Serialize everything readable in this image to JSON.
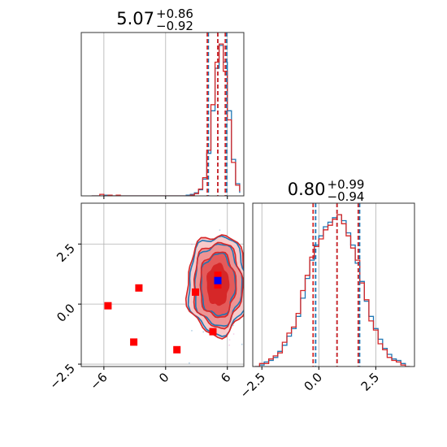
{
  "chart_data": {
    "type": "scatter",
    "layout": "corner",
    "params": [
      {
        "median": "5.07",
        "plus": "+0.86",
        "minus": "−0.92"
      },
      {
        "median": "0.80",
        "plus": "+0.99",
        "minus": "−0.94"
      }
    ],
    "axes": {
      "x1": {
        "lim": [
          -8.2,
          7.6
        ],
        "ticks": [
          -6,
          0,
          6
        ],
        "tick_labels": [
          "−6",
          "0",
          "6"
        ]
      },
      "x2": {
        "lim": [
          -2.9,
          4.2
        ],
        "ticks": [
          -2.5,
          0,
          2.5
        ],
        "tick_labels": [
          "−2.5",
          "0.0",
          "2.5"
        ]
      },
      "y2": {
        "lim": [
          -2.6,
          4.2
        ],
        "ticks": [
          -2.5,
          0,
          2.5
        ],
        "tick_labels": [
          "−2.5",
          "0.0",
          "2.5"
        ]
      }
    },
    "grid": true,
    "series_colors": {
      "blue": "#1f77b4",
      "red": "#d62728"
    },
    "quantile_lines": {
      "x1": {
        "blue": [
          4.15,
          5.07,
          5.93
        ],
        "red": [
          4.05,
          5.07,
          5.8
        ]
      },
      "x2": {
        "blue": [
          -0.14,
          0.8,
          1.79
        ],
        "red": [
          -0.25,
          0.8,
          1.73
        ]
      }
    },
    "hist_x1": {
      "bins": [
        -7.2,
        -6.8,
        -6.4,
        -6.0,
        -5.6,
        -5.2,
        -4.8,
        -4.4,
        -4.0,
        -3.6,
        -3.2,
        -2.8,
        -2.4,
        -2.0,
        -1.6,
        -1.2,
        -0.8,
        -0.4,
        0.0,
        0.4,
        0.8,
        1.2,
        1.6,
        2.0,
        2.4,
        2.8,
        3.2,
        3.6,
        4.0,
        4.4,
        4.8,
        5.2,
        5.6,
        6.0,
        6.4,
        6.8,
        7.2
      ],
      "blue": [
        0.0,
        0.0,
        0.0,
        0.005,
        0.0,
        0.0,
        0.0,
        0.0,
        0.0,
        0.0,
        0.0,
        0.0,
        0.0,
        0.0,
        0.0,
        0.0,
        0.0,
        0.0,
        0.0,
        0.0,
        0.0,
        0.0,
        0.0,
        0.005,
        0.01,
        0.02,
        0.04,
        0.11,
        0.28,
        0.56,
        0.84,
        0.99,
        0.88,
        0.56,
        0.24,
        0.08,
        0.02
      ],
      "red": [
        0.0,
        0.0,
        0.01,
        0.0,
        0.005,
        0.0,
        0.005,
        0.0,
        0.0,
        0.0,
        0.0,
        0.0,
        0.0,
        0.0,
        0.0,
        0.0,
        0.0,
        0.0,
        0.0,
        0.0,
        0.0,
        0.0,
        0.0,
        0.0,
        0.005,
        0.015,
        0.045,
        0.12,
        0.3,
        0.6,
        0.88,
        1.0,
        0.82,
        0.5,
        0.22,
        0.07,
        0.03
      ]
    },
    "hist_x2": {
      "bins": [
        -2.8,
        -2.6,
        -2.4,
        -2.2,
        -2.0,
        -1.8,
        -1.6,
        -1.4,
        -1.2,
        -1.0,
        -0.8,
        -0.6,
        -0.4,
        -0.2,
        0.0,
        0.2,
        0.4,
        0.6,
        0.8,
        1.0,
        1.2,
        1.4,
        1.6,
        1.8,
        2.0,
        2.2,
        2.4,
        2.6,
        2.8,
        3.0,
        3.2,
        3.4,
        3.6,
        3.8,
        4.0
      ],
      "blue": [
        0.0,
        0.01,
        0.03,
        0.04,
        0.06,
        0.1,
        0.14,
        0.2,
        0.25,
        0.33,
        0.45,
        0.58,
        0.7,
        0.8,
        0.86,
        0.92,
        0.95,
        0.98,
        1.0,
        0.96,
        0.88,
        0.8,
        0.68,
        0.56,
        0.43,
        0.33,
        0.25,
        0.18,
        0.12,
        0.08,
        0.05,
        0.04,
        0.02,
        0.0
      ],
      "red": [
        0.0,
        0.02,
        0.02,
        0.05,
        0.07,
        0.09,
        0.16,
        0.22,
        0.26,
        0.35,
        0.5,
        0.6,
        0.72,
        0.79,
        0.84,
        0.9,
        0.93,
        0.97,
        1.0,
        0.94,
        0.86,
        0.78,
        0.7,
        0.55,
        0.44,
        0.3,
        0.24,
        0.15,
        0.11,
        0.06,
        0.04,
        0.03,
        0.01,
        0.0
      ]
    },
    "scatter_points": [
      {
        "x": -5.6,
        "y": -0.07,
        "color": "#ff0000"
      },
      {
        "x": -2.6,
        "y": 0.67,
        "color": "#ff0000"
      },
      {
        "x": -3.1,
        "y": -1.58,
        "color": "#ff0000"
      },
      {
        "x": 1.1,
        "y": -1.9,
        "color": "#ff0000"
      },
      {
        "x": 2.9,
        "y": 0.5,
        "color": "#ff0000"
      },
      {
        "x": 4.6,
        "y": -1.15,
        "color": "#ff0000"
      },
      {
        "x": 5.07,
        "y": 1.2,
        "color": "#ff0000"
      },
      {
        "x": 5.07,
        "y": 0.8,
        "color": "#ff0000"
      },
      {
        "x": 5.07,
        "y": 0.98,
        "color": "#0000ff"
      }
    ],
    "contour_center": {
      "x": 5.07,
      "y": 0.8
    }
  }
}
